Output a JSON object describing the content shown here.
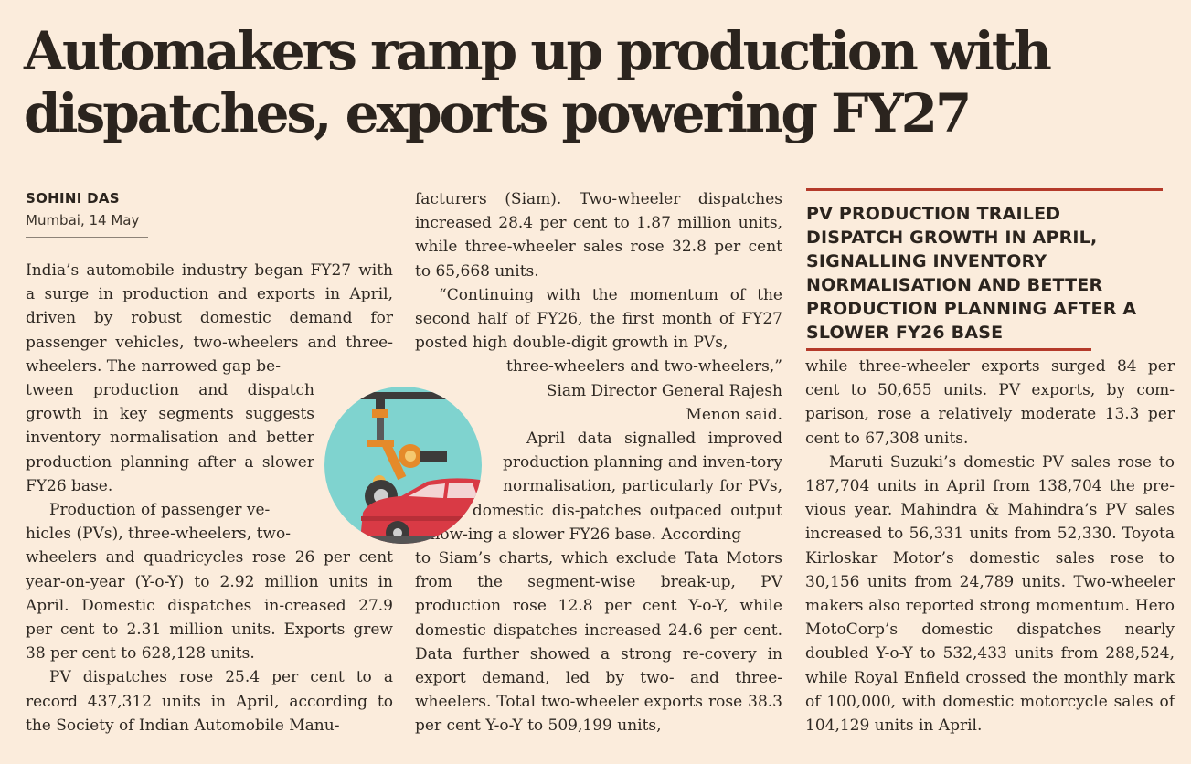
{
  "headline": {
    "line1": "Automakers ramp up production with",
    "line2": "dispatches, exports powering FY27"
  },
  "byline": {
    "author": "SOHINI DAS",
    "dateline": "Mumbai, 14 May"
  },
  "pull_quote": {
    "text": "PV PRODUCTION TRAILED DISPATCH GROWTH IN APRIL, SIGNALLING INVENTORY NORMALISATION AND BETTER PRODUCTION PLANNING AFTER A SLOWER FY26 BASE"
  },
  "illustration": {
    "icon": "robot-arm-car-assembly-icon",
    "colors": {
      "circle": "#7fd3cf",
      "car": "#d93a45",
      "arm": "#e58a2a"
    }
  },
  "colors": {
    "accent": "#b43a2a",
    "background": "#fbecdc"
  },
  "body": {
    "p1": "India’s automobile industry began FY27 with a surge in production and exports in April, driven by robust domestic demand for passenger vehicles, two-wheelers and three-wheelers. The narrowed gap between production and dispatch growth in key segments suggests inventory normalisation and better production planning after a slower FY26 base.",
    "p2": "Production of passenger vehicles (PVs), three-wheelers, two-wheelers and quadricycles rose 26 per cent year-on-year (Y-o-Y) to 2.92 million units in April. Domestic dispatches increased 27.9 per cent to 2.31 million units. Exports grew 38 per cent to 628,128 units.",
    "p3": "PV dispatches rose 25.4 per cent to a record 437,312 units in April, according to the Society of Indian Automobile Manufacturers (Siam). Two-wheeler dispatches increased 28.4 per cent to 1.87 million units, while three-wheeler sales rose 32.8 per cent to 65,668 units.",
    "p4": "“Continuing with the momentum of the second half of FY26, the first month of FY27 posted high double-digit growth in PVs, three-wheelers and two-wheelers,” Siam Director General Rajesh Menon said.",
    "p5": "April data signalled improved production planning and inventory normalisation, particularly for PVs, where domestic dispatches outpaced output following a slower FY26 base. According to Siam’s charts, which exclude Tata Motors from the segment-wise break-up, PV production rose 12.8 per cent Y-o-Y, while domestic dispatches increased 24.6 per cent. Data further showed a strong recovery in export demand, led by two- and three-wheelers. Total two-wheeler exports rose 38.3 per cent Y-o-Y to 509,199 units, while three-wheeler exports surged 84 per cent to 50,655 units. PV exports, by comparison, rose a relatively moderate 13.3 per cent to 67,308 units.",
    "p6": "Maruti Suzuki’s domestic PV sales rose to 187,704 units in April from 138,704 the previous year. Mahindra & Mahindra’s PV sales increased to 56,331 units from 52,330. Toyota Kirloskar Motor’s domestic sales rose to 30,156 units from 24,789 units. Two-wheeler makers also reported strong momentum. Hero MotoCorp’s domestic dispatches nearly doubled Y-o-Y to 532,433 units from 288,524, while Royal Enfield crossed the monthly mark of 100,000, with domestic motorcycle sales of 104,129 units in April."
  },
  "columns": {
    "c1": {
      "p1_a": "India’s automobile industry began FY27 with a surge in production and exports in April, driven by robust domestic demand for passenger vehicles, two-wheelers and three-wheelers. The narrowed gap be-",
      "p1_b": "tween production and dispatch growth in key segments suggests inventory normalisation and better production planning after a slower FY26 base.",
      "p2_a": "Production of passenger ve-",
      "p2_b": "hicles (PVs), three-wheelers, two-",
      "p2_c": "wheelers and quadricycles rose 26 per cent year-on-year (Y-o-Y) to 2.92 million units in April. Domestic dispatches in-creased 27.9 per cent to 2.31 million units. Exports grew 38 per cent to 628,128 units.",
      "p3": "PV dispatches rose 25.4 per cent to a record 437,312 units in April, according to the Society of Indian Automobile Manu-"
    },
    "c2": {
      "p3_cont": "facturers (Siam). Two-wheeler dispatches increased 28.4 per cent to 1.87 million units, while three-wheeler sales rose 32.8 per cent to 65,668 units.",
      "p4_a": "“Continuing with the momentum of the second half of FY26, the first month of FY27 posted high double-digit growth in PVs,",
      "p4_b": "three-wheelers and two-wheelers,” Siam Director General Rajesh Menon said.",
      "p5_a": "April data signalled improved production planning and inven-tory normalisation, particularly for PVs, where domestic dis-patches outpaced output follow-ing a slower FY26 base. According",
      "p5_b": "to Siam’s charts, which exclude Tata Motors from the segment-wise break-up, PV production rose 12.8 per cent Y-o-Y, while domestic dispatches increased 24.6 per cent. Data further showed a strong re-covery in export demand, led by two- and three-wheelers. Total two-wheeler exports rose 38.3 per cent Y-o-Y to 509,199 units,"
    },
    "c3": {
      "p5_cont": "while three-wheeler exports surged 84 per cent to 50,655 units. PV exports, by com-parison, rose a relatively moderate 13.3 per cent to 67,308 units.",
      "p6": "Maruti Suzuki’s domestic PV sales rose to 187,704 units in April from 138,704 the pre-vious year. Mahindra & Mahindra’s PV sales increased to 56,331 units from 52,330. Toyota Kirloskar Motor’s domestic sales rose to 30,156 units from 24,789 units. Two-wheeler makers also reported strong momentum. Hero MotoCorp’s domestic dispatches nearly doubled Y-o-Y to 532,433 units from 288,524, while Royal Enfield crossed the monthly mark of 100,000, with domestic motorcycle sales of 104,129 units in April."
    }
  }
}
